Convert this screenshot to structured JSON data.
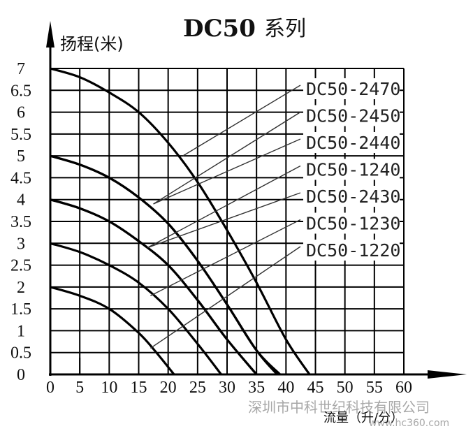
{
  "chart_data": {
    "type": "line",
    "title": "DC50",
    "title_suffix": "系列",
    "ylabel": "扬程(米)",
    "xlabel": "流量（升/分）",
    "xlim": [
      0,
      60
    ],
    "ylim": [
      0,
      7
    ],
    "x_ticks": [
      "0",
      "5",
      "10",
      "15",
      "20",
      "25",
      "30",
      "35",
      "40",
      "45",
      "50",
      "55",
      "60"
    ],
    "y_ticks": [
      "0",
      "0.5",
      "1",
      "1.5",
      "2",
      "2.5",
      "3",
      "3.5",
      "4",
      "4.5",
      "5",
      "5.5",
      "6",
      "6.5",
      "7"
    ],
    "grid": true,
    "series": [
      {
        "name": "DC50-2470",
        "x": [
          0,
          5,
          10,
          15,
          20,
          25,
          30,
          35,
          40,
          44
        ],
        "y": [
          7.0,
          6.8,
          6.45,
          6.0,
          5.3,
          4.4,
          3.3,
          2.1,
          0.8,
          0.0
        ]
      },
      {
        "name": "DC50-2450",
        "x": [
          0,
          5,
          10,
          15,
          20,
          25,
          30,
          35,
          39
        ],
        "y": [
          5.0,
          4.8,
          4.5,
          4.05,
          3.45,
          2.6,
          1.6,
          0.55,
          0.0
        ]
      },
      {
        "name": "DC50-2440",
        "x": [
          0,
          5,
          10,
          15,
          20,
          25,
          30,
          35,
          38.5
        ],
        "y": [
          5.0,
          4.8,
          4.5,
          4.05,
          3.45,
          2.6,
          1.6,
          0.55,
          0.0
        ]
      },
      {
        "name": "DC50-1240",
        "x": [
          0,
          5,
          10,
          15,
          20,
          25,
          30,
          35
        ],
        "y": [
          4.0,
          3.8,
          3.5,
          3.05,
          2.5,
          1.7,
          0.8,
          0.0
        ]
      },
      {
        "name": "DC50-2430",
        "x": [
          0,
          5,
          10,
          15,
          20,
          25,
          30,
          35
        ],
        "y": [
          4.0,
          3.8,
          3.5,
          3.05,
          2.5,
          1.7,
          0.8,
          0.0
        ]
      },
      {
        "name": "DC50-1230",
        "x": [
          0,
          5,
          10,
          15,
          20,
          25,
          29
        ],
        "y": [
          3.0,
          2.8,
          2.5,
          2.1,
          1.5,
          0.7,
          0.0
        ]
      },
      {
        "name": "DC50-1220",
        "x": [
          0,
          5,
          10,
          15,
          18,
          21
        ],
        "y": [
          2.0,
          1.8,
          1.5,
          0.95,
          0.5,
          0.0
        ]
      }
    ],
    "leader_targets": [
      {
        "series": "DC50-2470",
        "x": 22.5,
        "y": 5.0
      },
      {
        "series": "DC50-2450",
        "x": 17.5,
        "y": 3.9
      },
      {
        "series": "DC50-2440",
        "x": 17.5,
        "y": 3.9
      },
      {
        "series": "DC50-1240",
        "x": 16.5,
        "y": 2.9
      },
      {
        "series": "DC50-2430",
        "x": 16.5,
        "y": 2.9
      },
      {
        "series": "DC50-1230",
        "x": 17.0,
        "y": 1.8
      },
      {
        "series": "DC50-1220",
        "x": 17.0,
        "y": 0.6
      }
    ]
  },
  "watermark": {
    "line1": "深圳市中科世纪科技有限公司",
    "line2": "www.hc360.com"
  }
}
